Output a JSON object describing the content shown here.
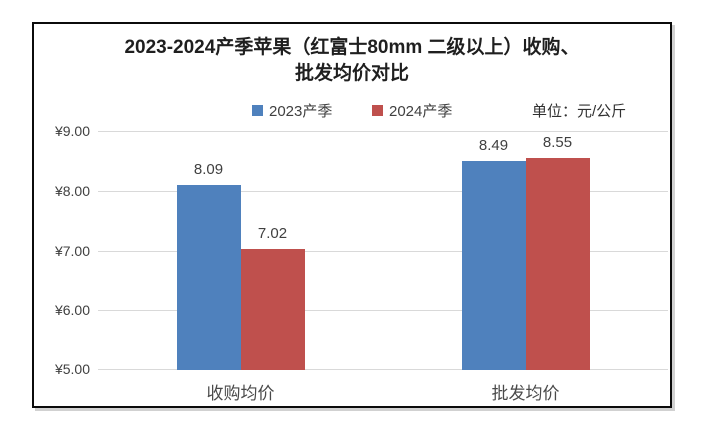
{
  "chart_data": {
    "type": "bar",
    "title": "2023-2024产季苹果（红富士80mm 二级以上）收购、批发均价对比",
    "title_lines": [
      "2023-2024产季苹果（红富士80mm 二级以上）收购、",
      "批发均价对比"
    ],
    "unit_label": "单位：元/公斤",
    "categories": [
      "收购均价",
      "批发均价"
    ],
    "series": [
      {
        "name": "2023产季",
        "color": "#4F81BD",
        "values": [
          8.09,
          8.49
        ],
        "labels": [
          "8.09",
          "8.49"
        ]
      },
      {
        "name": "2024产季",
        "color": "#BF504D",
        "values": [
          7.02,
          8.55
        ],
        "labels": [
          "7.02",
          "8.55"
        ]
      }
    ],
    "y_axis": {
      "min": 5,
      "max": 9,
      "tick_values": [
        9,
        8,
        7,
        6,
        5
      ],
      "tick_labels": [
        "¥9.00",
        "¥8.00",
        "¥7.00",
        "¥6.00",
        "¥5.00"
      ]
    },
    "ylim": [
      5,
      9
    ],
    "grid": true,
    "legend_position": "top",
    "value_labels": true,
    "colors": {
      "gridline": "#D9D9D9",
      "axis_text": "#404040",
      "title_text": "#1F1F1F"
    }
  }
}
